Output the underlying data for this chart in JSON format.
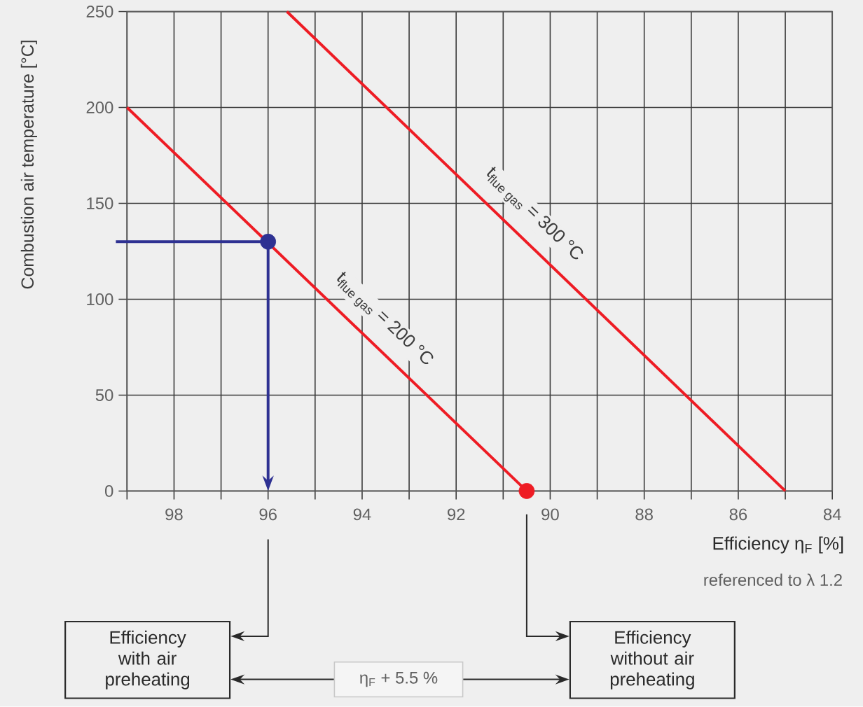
{
  "chart_data": {
    "type": "line",
    "xlabel": "Efficiency η$_{F}$ [%]",
    "ylabel": "Combustion air temperature [°C]",
    "annotations": [
      "referenced to λ 1.2",
      "Efficiency with air preheating",
      "Efficiency without air preheating",
      "η$_{F}$ + 5.5 %"
    ],
    "series": [
      {
        "name": "\\text{t}_{\\text{flue gas}}\\text{ = 200 °C}",
        "color": "#ee1c24",
        "x": [
          99,
          90.5
        ],
        "values": [
          200,
          0
        ]
      },
      {
        "name": "\\text{t}_{\\text{flue gas}}\\text{ = 300 °C}",
        "color": "#ee1c24",
        "x": [
          95.6,
          85
        ],
        "values": [
          250,
          0
        ]
      },
      {
        "type": "scatter",
        "color": "#2e3192",
        "marker": "circle",
        "x": [
          96
        ],
        "values": [
          130
        ]
      },
      {
        "type": "scatter",
        "color": "#ee1c24",
        "marker": "circle",
        "x": [
          90.5
        ],
        "values": [
          0
        ]
      }
    ],
    "xlim": [
      99,
      84
    ],
    "ylim": [
      0,
      250
    ],
    "xticks": [
      {
        "value": 99,
        "label": null
      },
      98,
      {
        "value": 97,
        "label": null
      },
      96,
      {
        "value": 95,
        "label": null
      },
      94,
      {
        "value": 93,
        "label": null
      },
      92,
      {
        "value": 91,
        "label": null
      },
      90,
      {
        "value": 89,
        "label": null
      },
      88,
      {
        "value": 87,
        "label": null
      },
      86,
      {
        "value": 85,
        "label": null
      },
      84
    ],
    "yticks": [
      0,
      50,
      100,
      150,
      200,
      250
    ],
    "grid": true,
    "marker": "none",
    "line_style": "solid"
  }
}
